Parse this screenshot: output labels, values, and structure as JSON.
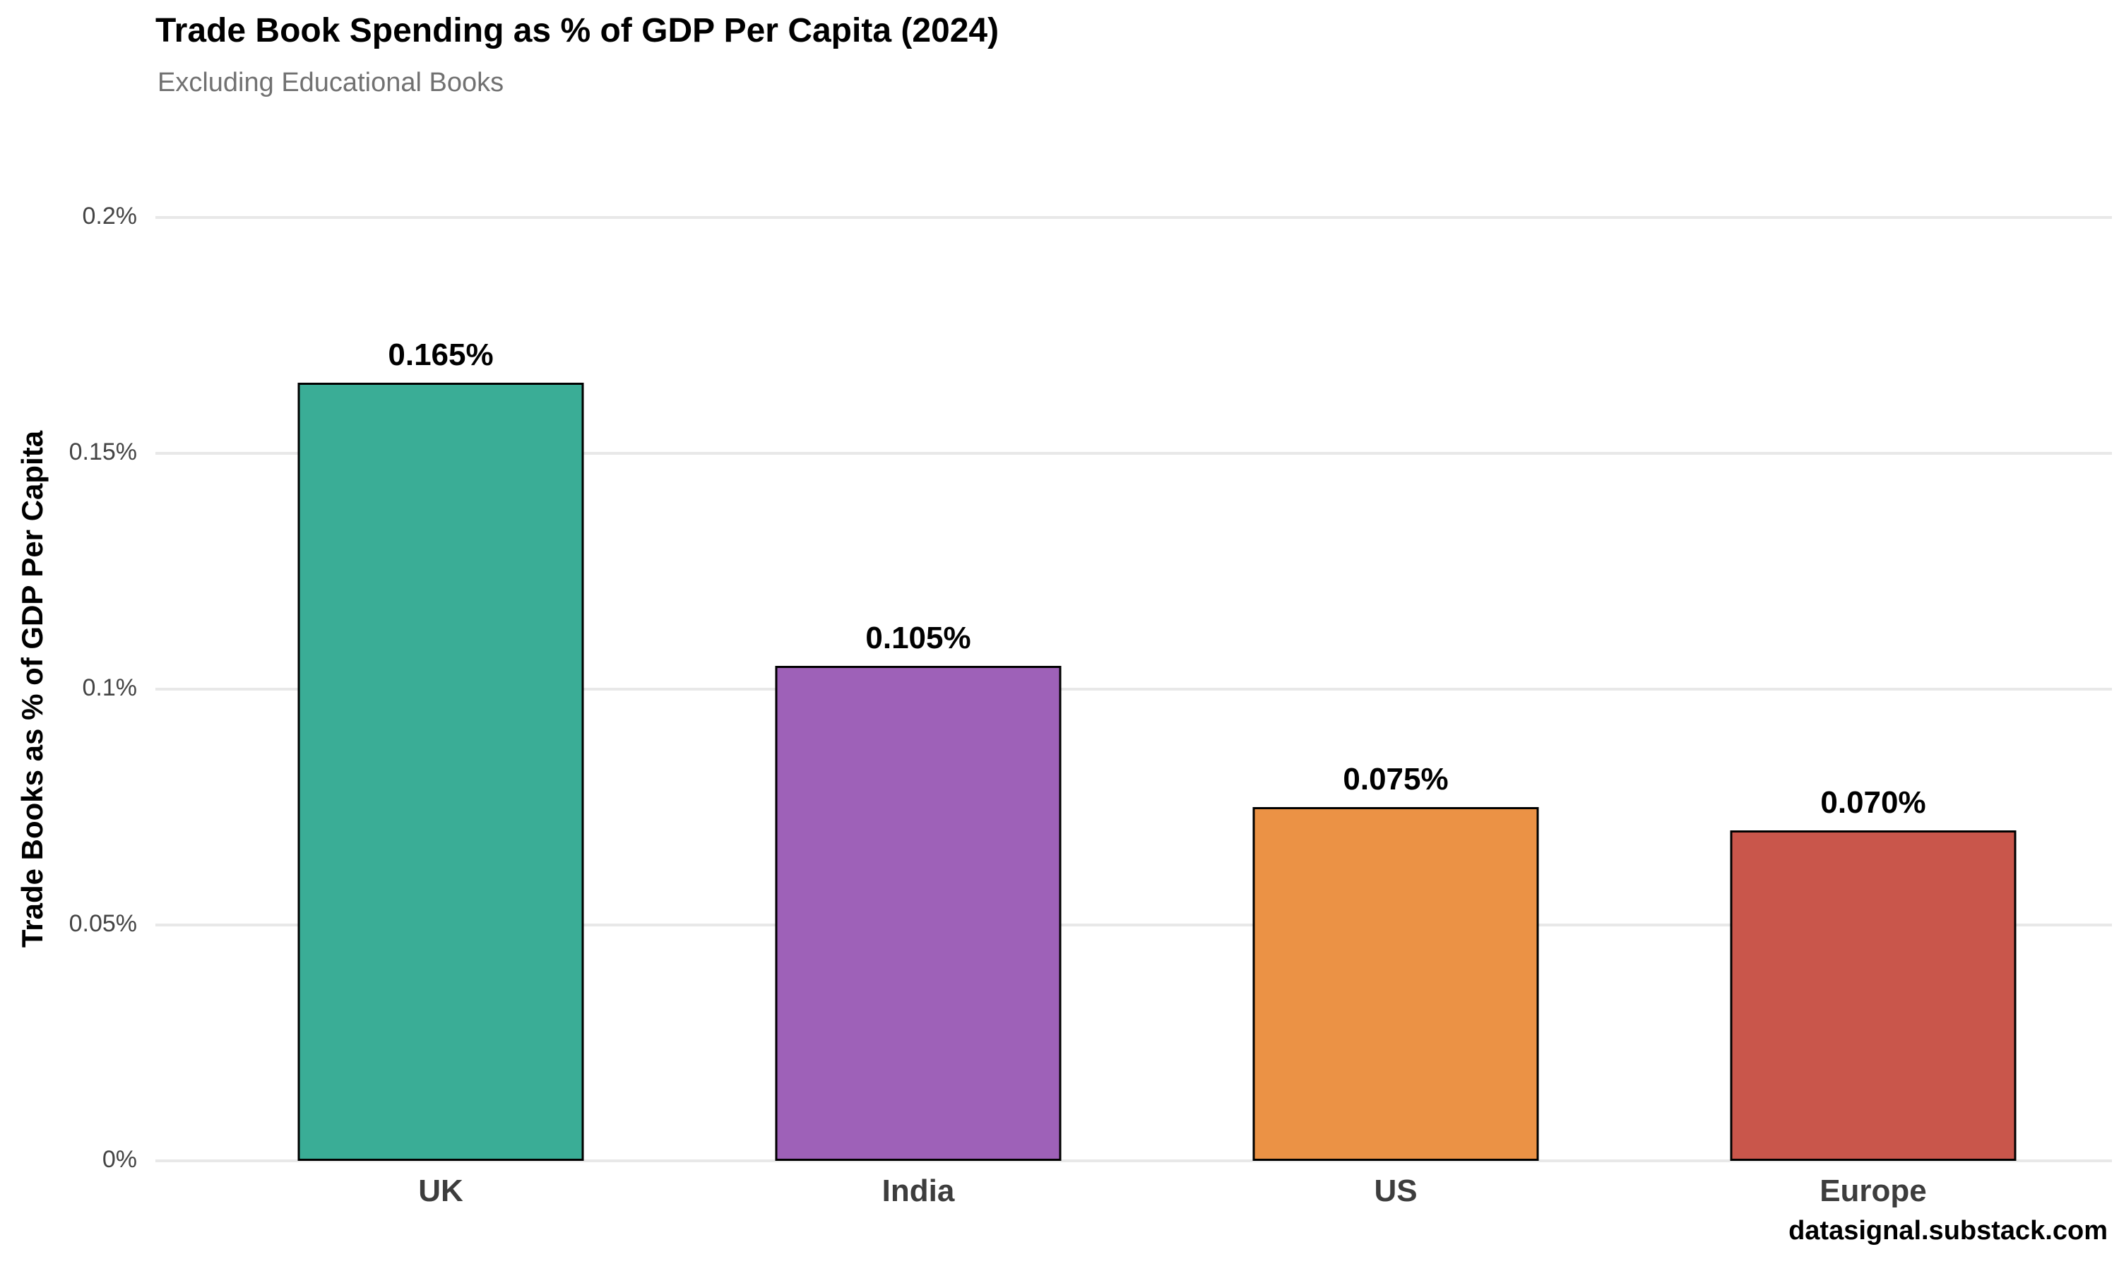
{
  "chart_data": {
    "type": "bar",
    "title": "Trade Book Spending as % of GDP Per Capita (2024)",
    "subtitle": "Excluding Educational Books",
    "categories": [
      "UK",
      "India",
      "US",
      "Europe"
    ],
    "values": [
      0.165,
      0.105,
      0.075,
      0.07
    ],
    "value_labels": [
      "0.165%",
      "0.105%",
      "0.075%",
      "0.070%"
    ],
    "bar_colors": [
      "#3aad96",
      "#9e61b8",
      "#eb9245",
      "#c9564b"
    ],
    "bar_border_color": "#000000",
    "xlabel": "",
    "ylabel": "Trade Books as % of GDP Per Capita",
    "ylim": [
      0,
      0.2
    ],
    "y_ticks": [
      {
        "value": 0,
        "label": "0%"
      },
      {
        "value": 0.05,
        "label": "0.05%"
      },
      {
        "value": 0.1,
        "label": "0.1%"
      },
      {
        "value": 0.15,
        "label": "0.15%"
      },
      {
        "value": 0.2,
        "label": "0.2%"
      }
    ],
    "grid": "horizontal",
    "gridline_color": "#e8e8e8",
    "legend": "none",
    "title_color": "#000000",
    "subtitle_color": "#717171",
    "tick_label_color": "#444444",
    "category_label_color": "#3d3d3d"
  },
  "footer": {
    "source_text": "datasignal.substack.com"
  }
}
